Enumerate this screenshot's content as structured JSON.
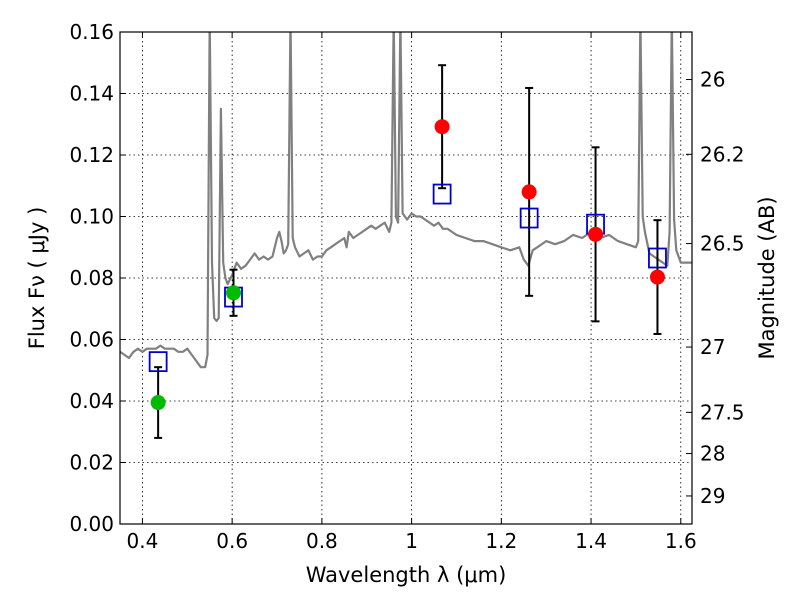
{
  "chart_data": {
    "type": "scatter",
    "xlabel": "Wavelength  λ (μm)",
    "ylabel": "Flux  Fν  ( μJy )",
    "y2label": "Magnitude (AB)",
    "xlim": [
      0.35,
      1.625
    ],
    "ylim": [
      0.0,
      0.16
    ],
    "grid": true,
    "x_ticks": [
      0.4,
      0.6,
      0.8,
      1.0,
      1.2,
      1.4,
      1.6
    ],
    "x_tick_labels": [
      "0.4",
      "0.6",
      "0.8",
      "1",
      "1.2",
      "1.4",
      "1.6"
    ],
    "y_ticks": [
      0.0,
      0.02,
      0.04,
      0.06,
      0.08,
      0.1,
      0.12,
      0.14,
      0.16
    ],
    "y_tick_labels": [
      "0.00",
      "0.02",
      "0.04",
      "0.06",
      "0.08",
      "0.10",
      "0.12",
      "0.14",
      "0.16"
    ],
    "y2_ticks": [
      26,
      26.2,
      26.5,
      27,
      27.5,
      28,
      29
    ],
    "y2_tick_labels": [
      "26",
      "26.2",
      "26.5",
      "27",
      "27.5",
      "28",
      "29"
    ],
    "colors": {
      "spectrum": "#808080",
      "observed_optical": "#00bb00",
      "observed_ir": "#ff0000",
      "model": "#0000cc",
      "errorbar": "#000000"
    },
    "series": [
      {
        "type": "line",
        "color": "#808080",
        "x": [
          0.35,
          0.36,
          0.37,
          0.38,
          0.39,
          0.4,
          0.41,
          0.42,
          0.43,
          0.44,
          0.45,
          0.46,
          0.47,
          0.48,
          0.49,
          0.5,
          0.51,
          0.52,
          0.53,
          0.54,
          0.545,
          0.55,
          0.555,
          0.56,
          0.565,
          0.57,
          0.575,
          0.58,
          0.585,
          0.59,
          0.6,
          0.61,
          0.62,
          0.63,
          0.64,
          0.65,
          0.66,
          0.67,
          0.68,
          0.69,
          0.7,
          0.705,
          0.71,
          0.715,
          0.72,
          0.725,
          0.73,
          0.735,
          0.74,
          0.75,
          0.76,
          0.77,
          0.78,
          0.79,
          0.8,
          0.81,
          0.82,
          0.83,
          0.84,
          0.85,
          0.855,
          0.86,
          0.87,
          0.88,
          0.89,
          0.9,
          0.91,
          0.92,
          0.93,
          0.94,
          0.95,
          0.955,
          0.96,
          0.965,
          0.97,
          0.975,
          0.98,
          0.985,
          0.99,
          1.0,
          1.01,
          1.02,
          1.03,
          1.04,
          1.05,
          1.06,
          1.07,
          1.08,
          1.09,
          1.1,
          1.12,
          1.14,
          1.16,
          1.18,
          1.2,
          1.22,
          1.24,
          1.25,
          1.26,
          1.27,
          1.28,
          1.3,
          1.32,
          1.34,
          1.36,
          1.38,
          1.4,
          1.42,
          1.44,
          1.46,
          1.48,
          1.5,
          1.505,
          1.51,
          1.515,
          1.52,
          1.53,
          1.54,
          1.55,
          1.56,
          1.57,
          1.575,
          1.58,
          1.585,
          1.59,
          1.6,
          1.61,
          1.625
        ],
        "y": [
          0.056,
          0.055,
          0.054,
          0.056,
          0.057,
          0.056,
          0.057,
          0.057,
          0.057,
          0.058,
          0.057,
          0.057,
          0.057,
          0.056,
          0.056,
          0.057,
          0.055,
          0.053,
          0.051,
          0.051,
          0.055,
          0.165,
          0.085,
          0.067,
          0.066,
          0.067,
          0.135,
          0.085,
          0.08,
          0.078,
          0.081,
          0.085,
          0.083,
          0.084,
          0.086,
          0.088,
          0.086,
          0.087,
          0.086,
          0.087,
          0.093,
          0.095,
          0.092,
          0.088,
          0.089,
          0.091,
          0.165,
          0.093,
          0.09,
          0.087,
          0.088,
          0.089,
          0.086,
          0.087,
          0.087,
          0.089,
          0.09,
          0.091,
          0.092,
          0.093,
          0.09,
          0.095,
          0.093,
          0.094,
          0.095,
          0.096,
          0.097,
          0.096,
          0.097,
          0.098,
          0.095,
          0.098,
          0.165,
          0.1,
          0.098,
          0.165,
          0.101,
          0.1,
          0.099,
          0.101,
          0.1,
          0.1,
          0.099,
          0.098,
          0.097,
          0.098,
          0.096,
          0.096,
          0.095,
          0.094,
          0.093,
          0.092,
          0.092,
          0.091,
          0.09,
          0.089,
          0.09,
          0.086,
          0.084,
          0.089,
          0.09,
          0.092,
          0.091,
          0.092,
          0.094,
          0.093,
          0.095,
          0.093,
          0.094,
          0.092,
          0.091,
          0.09,
          0.092,
          0.165,
          0.1,
          0.095,
          0.088,
          0.087,
          0.086,
          0.085,
          0.084,
          0.095,
          0.165,
          0.099,
          0.089,
          0.085,
          0.085,
          0.085
        ]
      },
      {
        "type": "scatter",
        "marker": "circle",
        "color": "#00bb00",
        "x": [
          0.435,
          0.603
        ],
        "y": [
          0.0395,
          0.0752
        ],
        "yerr": [
          0.0115,
          0.0075
        ]
      },
      {
        "type": "scatter",
        "marker": "circle",
        "color": "#ff0000",
        "x": [
          1.068,
          1.262,
          1.41,
          1.548
        ],
        "y": [
          0.1292,
          0.108,
          0.0942,
          0.0803
        ],
        "yerr": [
          0.02,
          0.0338,
          0.0283,
          0.0185
        ]
      },
      {
        "type": "scatter",
        "marker": "square",
        "color": "#0000cc",
        "x": [
          0.435,
          0.603,
          1.068,
          1.262,
          1.41,
          1.548
        ],
        "y": [
          0.0528,
          0.0738,
          0.1073,
          0.0995,
          0.0975,
          0.0865
        ]
      }
    ]
  }
}
